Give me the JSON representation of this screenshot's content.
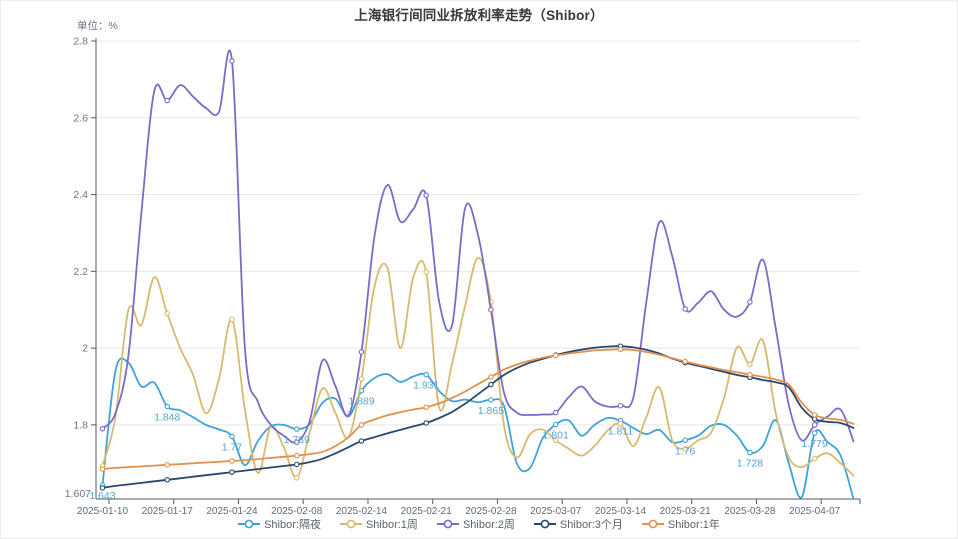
{
  "page": {
    "title": "上海银行间同业拆放利率走势（Shibor）",
    "unit_label": "单位：%"
  },
  "colors": {
    "grid": "#e5e8ec",
    "axis": "#555a61",
    "axis_label": "#6b7684",
    "x_label": "#5f6a76",
    "data_label": "#54a4d7",
    "title": "#383838"
  },
  "legend": {
    "position": "bottom",
    "items": [
      {
        "label": "Shibor:隔夜",
        "color": "#3fa2d9"
      },
      {
        "label": "Shibor:1周",
        "color": "#d8ba6f"
      },
      {
        "label": "Shibor:2周",
        "color": "#7d6ac8"
      },
      {
        "label": "Shibor:3个月",
        "color": "#27496f"
      },
      {
        "label": "Shibor:1年",
        "color": "#e2904e"
      }
    ]
  },
  "chart_data": {
    "type": "line",
    "title": "上海银行间同业拆放利率走势（Shibor）",
    "ylabel": "单位：%",
    "smooth": true,
    "grid": "horizontal-only",
    "legend_position": "bottom",
    "x_axis": {
      "type": "category (trading days)",
      "tick_labels": [
        "2025-01-10",
        "2025-01-17",
        "2025-01-24",
        "2025-02-08",
        "2025-02-14",
        "2025-02-21",
        "2025-02-28",
        "2025-03-07",
        "2025-03-14",
        "2025-03-21",
        "2025-03-28",
        "2025-04-07"
      ],
      "tick_indices": [
        0,
        5,
        10,
        15,
        20,
        25,
        30,
        35,
        40,
        45,
        50,
        55
      ],
      "num_points": 59
    },
    "y_axis": {
      "min": 1.607,
      "max": 2.8,
      "min_label": "1.607",
      "tick_values": [
        1.8,
        2.0,
        2.2,
        2.4,
        2.6,
        2.8
      ],
      "tick_labels": [
        "1.8",
        "2",
        "2.2",
        "2.4",
        "2.6",
        "2.8"
      ]
    },
    "marker_interval": 5,
    "series": [
      {
        "name": "Shibor:隔夜",
        "color": "#3fa2d9",
        "values": [
          1.643,
          1.94,
          1.962,
          1.9,
          1.91,
          1.848,
          1.838,
          1.82,
          1.8,
          1.788,
          1.77,
          1.695,
          1.758,
          1.796,
          1.8,
          1.789,
          1.802,
          1.858,
          1.868,
          1.822,
          1.889,
          1.922,
          1.932,
          1.912,
          1.926,
          1.931,
          1.888,
          1.862,
          1.866,
          1.859,
          1.865,
          1.85,
          1.7,
          1.687,
          1.765,
          1.801,
          1.812,
          1.772,
          1.8,
          1.818,
          1.811,
          1.792,
          1.776,
          1.787,
          1.755,
          1.76,
          1.772,
          1.798,
          1.8,
          1.772,
          1.728,
          1.745,
          1.812,
          1.7,
          1.612,
          1.779,
          1.755,
          1.72,
          1.607
        ]
      },
      {
        "name": "Shibor:1周",
        "color": "#d8ba6f",
        "values": [
          1.693,
          1.82,
          2.1,
          2.06,
          2.185,
          2.09,
          2.0,
          1.93,
          1.83,
          1.92,
          2.075,
          1.84,
          1.675,
          1.795,
          1.742,
          1.662,
          1.78,
          1.895,
          1.83,
          1.768,
          1.92,
          2.16,
          2.21,
          2.0,
          2.185,
          2.198,
          1.845,
          1.96,
          2.11,
          2.235,
          2.12,
          1.8,
          1.715,
          1.775,
          1.788,
          1.76,
          1.738,
          1.72,
          1.745,
          1.785,
          1.803,
          1.745,
          1.82,
          1.898,
          1.76,
          1.738,
          1.76,
          1.78,
          1.87,
          2.002,
          1.958,
          2.02,
          1.83,
          1.715,
          1.69,
          1.712,
          1.726,
          1.7,
          1.668
        ]
      },
      {
        "name": "Shibor:2周",
        "color": "#7d6ac8",
        "values": [
          1.79,
          1.83,
          1.98,
          2.35,
          2.67,
          2.645,
          2.685,
          2.655,
          2.625,
          2.615,
          2.748,
          2.0,
          1.86,
          1.8,
          1.772,
          1.755,
          1.81,
          1.968,
          1.9,
          1.825,
          1.99,
          2.29,
          2.425,
          2.33,
          2.362,
          2.398,
          2.12,
          2.06,
          2.365,
          2.295,
          2.1,
          1.885,
          1.832,
          1.826,
          1.827,
          1.832,
          1.872,
          1.9,
          1.862,
          1.848,
          1.85,
          1.872,
          2.12,
          2.328,
          2.24,
          2.102,
          2.118,
          2.148,
          2.1,
          2.082,
          2.12,
          2.23,
          2.05,
          1.852,
          1.76,
          1.8,
          1.822,
          1.84,
          1.757
        ]
      },
      {
        "name": "Shibor:3个月",
        "color": "#27496f",
        "values": [
          1.636,
          1.641,
          1.645,
          1.649,
          1.653,
          1.657,
          1.661,
          1.665,
          1.669,
          1.673,
          1.677,
          1.681,
          1.685,
          1.689,
          1.693,
          1.697,
          1.703,
          1.712,
          1.726,
          1.742,
          1.758,
          1.768,
          1.778,
          1.787,
          1.796,
          1.805,
          1.818,
          1.834,
          1.855,
          1.88,
          1.905,
          1.93,
          1.948,
          1.962,
          1.972,
          1.982,
          1.99,
          1.996,
          2.001,
          2.004,
          2.005,
          2.002,
          1.996,
          1.986,
          1.973,
          1.962,
          1.954,
          1.946,
          1.938,
          1.93,
          1.924,
          1.917,
          1.911,
          1.898,
          1.845,
          1.815,
          1.808,
          1.805,
          1.792
        ]
      },
      {
        "name": "Shibor:1年",
        "color": "#e2904e",
        "values": [
          1.685,
          1.688,
          1.69,
          1.692,
          1.694,
          1.696,
          1.698,
          1.7,
          1.702,
          1.704,
          1.706,
          1.708,
          1.711,
          1.714,
          1.717,
          1.72,
          1.724,
          1.73,
          1.745,
          1.768,
          1.8,
          1.814,
          1.825,
          1.833,
          1.84,
          1.846,
          1.856,
          1.87,
          1.887,
          1.906,
          1.925,
          1.944,
          1.957,
          1.967,
          1.975,
          1.981,
          1.986,
          1.99,
          1.994,
          1.996,
          1.997,
          1.995,
          1.99,
          1.983,
          1.974,
          1.965,
          1.957,
          1.95,
          1.943,
          1.937,
          1.931,
          1.925,
          1.918,
          1.905,
          1.858,
          1.826,
          1.817,
          1.813,
          1.803
        ]
      }
    ],
    "data_labels": {
      "series": "Shibor:隔夜",
      "at_indices": [
        0,
        5,
        10,
        15,
        20,
        25,
        30,
        35,
        40,
        45,
        50,
        55
      ],
      "values": [
        "1.643",
        "1.848",
        "1.77",
        "1.789",
        "1.889",
        "1.931",
        "1.865",
        "1.801",
        "1.811",
        "1.76",
        "1.728",
        "1.779"
      ]
    }
  }
}
